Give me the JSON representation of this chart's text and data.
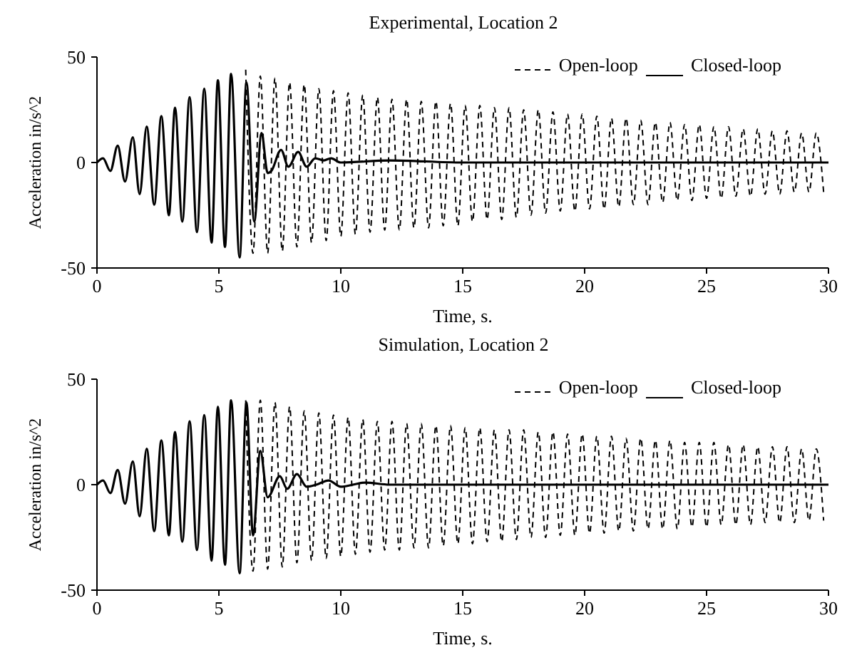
{
  "chart_data": [
    {
      "type": "line",
      "title": "Experimental, Location 2",
      "xlabel": "Time, s.",
      "ylabel": "Acceleration in/s^2",
      "xlim": [
        0,
        30
      ],
      "ylim": [
        -50,
        50
      ],
      "xticks": [
        0,
        5,
        10,
        15,
        20,
        25,
        30
      ],
      "yticks": [
        -50,
        0,
        50
      ],
      "legend": "top right",
      "series": [
        {
          "name": "Open-loop",
          "color": "#000000",
          "line_style": "dashed",
          "x": [
            6.1,
            6.4,
            6.7,
            7.0,
            7.3,
            7.6,
            7.9,
            8.2,
            8.5,
            8.8,
            9.1,
            9.4,
            9.7,
            10.0,
            10.3,
            10.6,
            10.9,
            11.2,
            11.5,
            11.8,
            12.1,
            12.4,
            12.7,
            13.0,
            13.3,
            13.6,
            13.9,
            14.2,
            14.5,
            14.8,
            15.1,
            15.4,
            15.7,
            16.0,
            16.3,
            16.6,
            16.9,
            17.2,
            17.5,
            17.8,
            18.1,
            18.4,
            18.7,
            19.0,
            19.3,
            19.6,
            19.9,
            20.2,
            20.5,
            20.8,
            21.1,
            21.4,
            21.7,
            22.0,
            22.3,
            22.6,
            22.9,
            23.2,
            23.5,
            23.8,
            24.1,
            24.4,
            24.7,
            25.0,
            25.3,
            25.6,
            25.9,
            26.2,
            26.5,
            26.8,
            27.1,
            27.4,
            27.7,
            28.0,
            28.3,
            28.6,
            28.9,
            29.2,
            29.5,
            29.8
          ],
          "values": [
            44,
            -43,
            41,
            -43,
            40,
            -42,
            38,
            -40,
            37,
            -38,
            35,
            -37,
            34,
            -35,
            33,
            -34,
            32,
            -33,
            31,
            -32,
            30,
            -32,
            30,
            -31,
            29,
            -31,
            29,
            -30,
            28,
            -30,
            27,
            -28,
            27,
            -27,
            26,
            -27,
            26,
            -26,
            25,
            -25,
            25,
            -24,
            24,
            -23,
            23,
            -23,
            23,
            -22,
            22,
            -22,
            21,
            -21,
            21,
            -20,
            20,
            -20,
            19,
            -19,
            19,
            -18,
            18,
            -18,
            18,
            -17,
            17,
            -17,
            17,
            -16,
            16,
            -16,
            16,
            -15,
            15,
            -15,
            15,
            -14,
            14,
            -14,
            14,
            -14
          ]
        },
        {
          "name": "Closed-loop",
          "color": "#000000",
          "line_style": "solid",
          "x": [
            0,
            0.25,
            0.55,
            0.85,
            1.15,
            1.47,
            1.75,
            2.04,
            2.35,
            2.64,
            2.95,
            3.2,
            3.5,
            3.8,
            4.1,
            4.4,
            4.7,
            4.96,
            5.25,
            5.5,
            5.85,
            6.13,
            6.45,
            6.75,
            7.0,
            7.15,
            7.55,
            7.85,
            8.25,
            8.6,
            8.95,
            9.3,
            9.6,
            10,
            12,
            15,
            20,
            25,
            30
          ],
          "values": [
            0,
            2,
            -4,
            8,
            -9,
            12,
            -15,
            17,
            -20,
            22,
            -25,
            26,
            -28,
            31,
            -33,
            35,
            -38,
            39,
            -40,
            42,
            -45,
            38,
            -28,
            14,
            -5,
            -4,
            6,
            -2,
            5,
            -2,
            2,
            1,
            2,
            0,
            1,
            0,
            0,
            0,
            0
          ]
        }
      ]
    },
    {
      "type": "line",
      "title": "Simulation, Location 2",
      "xlabel": "Time, s.",
      "ylabel": "Acceleration in/s^2",
      "xlim": [
        0,
        30
      ],
      "ylim": [
        -50,
        50
      ],
      "xticks": [
        0,
        5,
        10,
        15,
        20,
        25,
        30
      ],
      "yticks": [
        -50,
        0,
        50
      ],
      "legend": "top right",
      "series": [
        {
          "name": "Open-loop",
          "color": "#000000",
          "line_style": "dashed",
          "x": [
            6.1,
            6.4,
            6.7,
            7.0,
            7.3,
            7.6,
            7.9,
            8.2,
            8.5,
            8.8,
            9.1,
            9.4,
            9.7,
            10.0,
            10.3,
            10.6,
            10.9,
            11.2,
            11.5,
            11.8,
            12.1,
            12.4,
            12.7,
            13.0,
            13.3,
            13.6,
            13.9,
            14.2,
            14.5,
            14.8,
            15.1,
            15.4,
            15.7,
            16.0,
            16.3,
            16.6,
            16.9,
            17.2,
            17.5,
            17.8,
            18.1,
            18.4,
            18.7,
            19.0,
            19.3,
            19.6,
            19.9,
            20.2,
            20.5,
            20.8,
            21.1,
            21.4,
            21.7,
            22.0,
            22.3,
            22.6,
            22.9,
            23.2,
            23.5,
            23.8,
            24.1,
            24.4,
            24.7,
            25.0,
            25.3,
            25.6,
            25.9,
            26.2,
            26.5,
            26.8,
            27.1,
            27.4,
            27.7,
            28.0,
            28.3,
            28.6,
            28.9,
            29.2,
            29.5,
            29.8
          ],
          "values": [
            40,
            -41,
            40,
            -40,
            39,
            -39,
            37,
            -37,
            35,
            -36,
            34,
            -35,
            33,
            -34,
            32,
            -33,
            31,
            -32,
            30,
            -31,
            30,
            -31,
            29,
            -30,
            29,
            -30,
            28,
            -29,
            28,
            -28,
            27,
            -28,
            27,
            -27,
            26,
            -27,
            26,
            -26,
            26,
            -25,
            25,
            -25,
            25,
            -24,
            24,
            -24,
            24,
            -23,
            23,
            -23,
            23,
            -22,
            22,
            -22,
            22,
            -21,
            21,
            -21,
            21,
            -21,
            20,
            -20,
            20,
            -20,
            20,
            -19,
            19,
            -19,
            19,
            -19,
            18,
            -18,
            18,
            -18,
            18,
            -18,
            17,
            -17,
            17,
            -17
          ]
        },
        {
          "name": "Closed-loop",
          "color": "#000000",
          "line_style": "solid",
          "x": [
            0,
            0.25,
            0.55,
            0.85,
            1.15,
            1.47,
            1.75,
            2.04,
            2.35,
            2.64,
            2.95,
            3.2,
            3.5,
            3.8,
            4.1,
            4.4,
            4.7,
            4.96,
            5.25,
            5.5,
            5.85,
            6.13,
            6.4,
            6.7,
            7.0,
            7.5,
            7.8,
            8.2,
            8.6,
            9.0,
            9.5,
            10,
            10.5,
            11,
            12,
            15,
            20,
            25,
            30
          ],
          "values": [
            0,
            2,
            -4,
            7,
            -9,
            11,
            -15,
            17,
            -22,
            21,
            -24,
            25,
            -27,
            30,
            -31,
            33,
            -36,
            37,
            -38,
            40,
            -42,
            39,
            -24,
            16,
            -6,
            4,
            -2,
            5,
            -1,
            0,
            2,
            -1,
            0,
            1,
            0,
            0,
            0,
            0,
            0
          ]
        }
      ]
    }
  ]
}
